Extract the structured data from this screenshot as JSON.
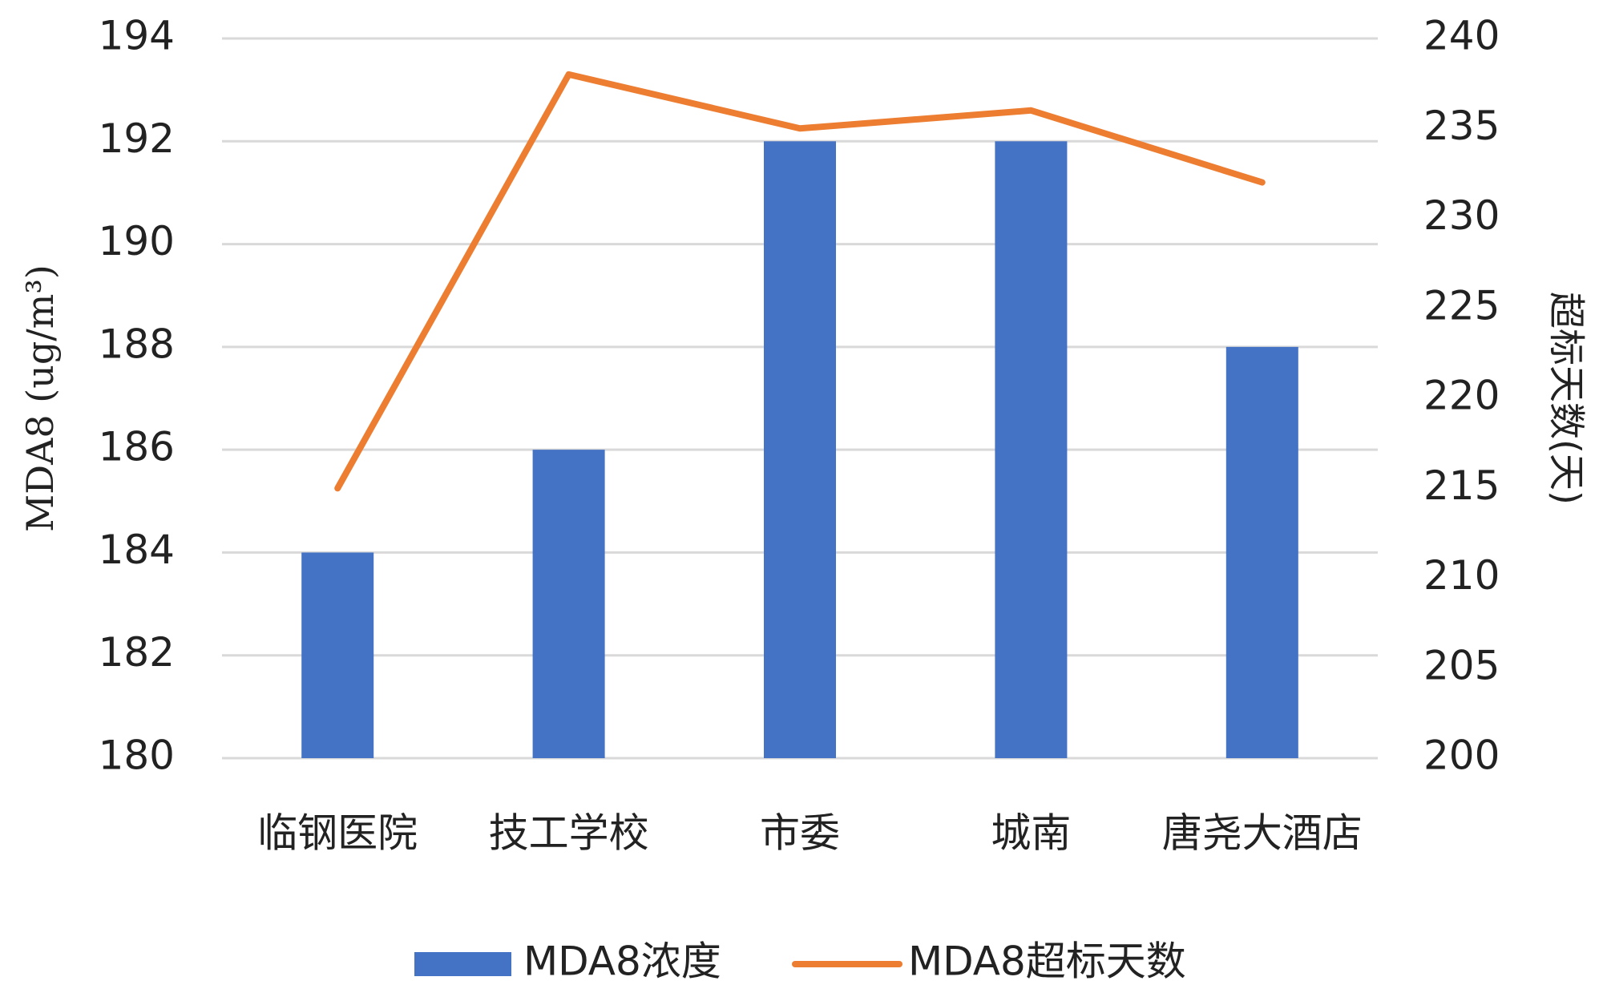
{
  "chart_data": {
    "type": "bar-line",
    "categories": [
      "临钢医院",
      "技工学校",
      "市委",
      "城南",
      "唐尧大酒店"
    ],
    "series": [
      {
        "name": "MDA8浓度",
        "type": "bar",
        "color": "#4472c4",
        "values": [
          184,
          186,
          192,
          192,
          188
        ]
      },
      {
        "name": "MDA8超标天数",
        "type": "line",
        "axis": "y2",
        "color": "#ed7d31",
        "values": [
          215,
          238,
          235,
          236,
          232
        ]
      }
    ],
    "y_label": "MDA8 (ug/m³)",
    "y2_label": "超标天数(天)",
    "ylim": [
      180,
      194
    ],
    "yticks": [
      180,
      182,
      184,
      186,
      188,
      190,
      192,
      194
    ],
    "y2lim": [
      200,
      240
    ],
    "y2ticks": [
      200,
      205,
      210,
      215,
      220,
      225,
      230,
      235,
      240
    ],
    "grid": true,
    "legend": "bottom"
  }
}
